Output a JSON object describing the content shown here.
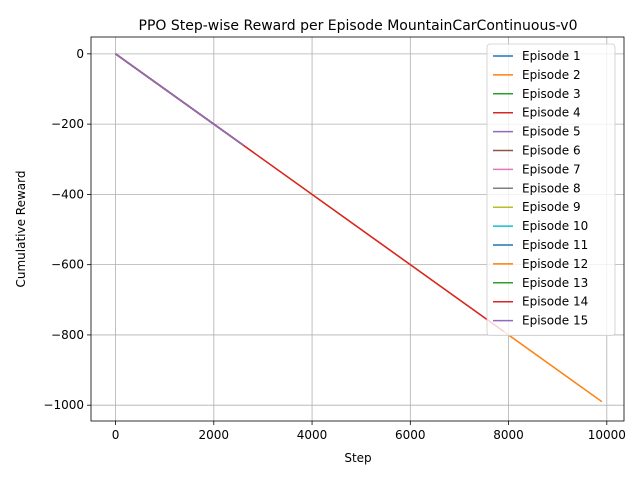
{
  "chart_data": {
    "type": "line",
    "title": "PPO Step-wise Reward per Episode MountainCarContinuous-v0",
    "xlabel": "Step",
    "ylabel": "Cumulative Reward",
    "xlim": [
      -500,
      10350
    ],
    "ylim": [
      -1045,
      48
    ],
    "xticks": [
      0,
      2000,
      4000,
      6000,
      8000,
      10000
    ],
    "xtick_labels": [
      "0",
      "2000",
      "4000",
      "6000",
      "8000",
      "10000"
    ],
    "yticks": [
      0,
      -200,
      -400,
      -600,
      -800,
      -1000
    ],
    "ytick_labels": [
      "0",
      "−200",
      "−400",
      "−600",
      "−800",
      "−1000"
    ],
    "grid": true,
    "legend_position": "top-right",
    "series": [
      {
        "name": "Episode 1",
        "color": "#1f77b4",
        "x": [
          0,
          2600
        ],
        "y": [
          0,
          -260
        ]
      },
      {
        "name": "Episode 2",
        "color": "#ff7f0e",
        "x": [
          0,
          9900
        ],
        "y": [
          0,
          -990
        ]
      },
      {
        "name": "Episode 3",
        "color": "#2ca02c",
        "x": [
          0,
          2600
        ],
        "y": [
          0,
          -260
        ]
      },
      {
        "name": "Episode 4",
        "color": "#d62728",
        "x": [
          0,
          7900
        ],
        "y": [
          0,
          -790
        ]
      },
      {
        "name": "Episode 5",
        "color": "#9467bd",
        "x": [
          0,
          2600
        ],
        "y": [
          0,
          -260
        ]
      },
      {
        "name": "Episode 6",
        "color": "#8c564b",
        "x": [
          0,
          2600
        ],
        "y": [
          0,
          -260
        ]
      },
      {
        "name": "Episode 7",
        "color": "#e377c2",
        "x": [
          0,
          2600
        ],
        "y": [
          0,
          -260
        ]
      },
      {
        "name": "Episode 8",
        "color": "#7f7f7f",
        "x": [
          0,
          2600
        ],
        "y": [
          0,
          -260
        ]
      },
      {
        "name": "Episode 9",
        "color": "#bcbd22",
        "x": [
          0,
          2600
        ],
        "y": [
          0,
          -260
        ]
      },
      {
        "name": "Episode 10",
        "color": "#17becf",
        "x": [
          0,
          2600
        ],
        "y": [
          0,
          -260
        ]
      },
      {
        "name": "Episode 11",
        "color": "#1f77b4",
        "x": [
          0,
          2600
        ],
        "y": [
          0,
          -260
        ]
      },
      {
        "name": "Episode 12",
        "color": "#ff7f0e",
        "x": [
          0,
          2600
        ],
        "y": [
          0,
          -260
        ]
      },
      {
        "name": "Episode 13",
        "color": "#2ca02c",
        "x": [
          0,
          2600
        ],
        "y": [
          0,
          -260
        ]
      },
      {
        "name": "Episode 14",
        "color": "#d62728",
        "x": [
          0,
          2600
        ],
        "y": [
          0,
          -260
        ]
      },
      {
        "name": "Episode 15",
        "color": "#9467bd",
        "x": [
          0,
          2600
        ],
        "y": [
          0,
          -260
        ]
      }
    ]
  }
}
